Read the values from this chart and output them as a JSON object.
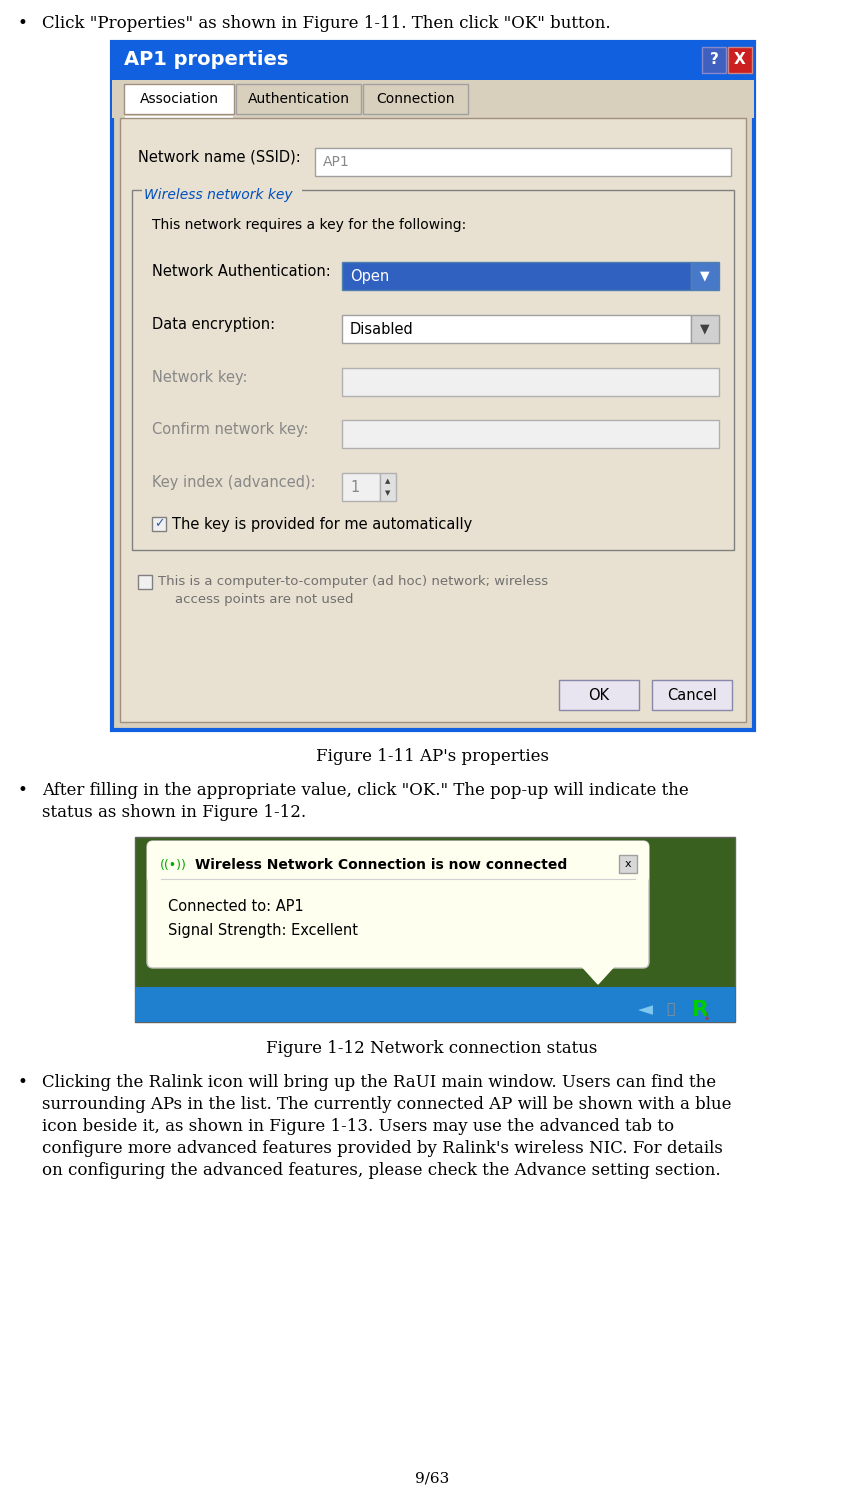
{
  "bg_color": "#ffffff",
  "text_color": "#000000",
  "page_number": "9/63",
  "bullet1": "Click \"Properties\" as shown in Figure 1-11. Then click \"OK\" button.",
  "fig1_caption": "Figure 1-11 AP's properties",
  "bullet2_line1": "After filling in the appropriate value, click \"OK.\" The pop-up will indicate the",
  "bullet2_line2": "status as shown in Figure 1-12.",
  "fig2_caption": "Figure 1-12 Network connection status",
  "bullet3_lines": [
    "Clicking the Ralink icon will bring up the RaUI main window. Users can find the",
    "surrounding APs in the list. The currently connected AP will be shown with a blue",
    "icon beside it, as shown in Figure 1-13. Users may use the advanced tab to",
    "configure more advanced features provided by Ralink's wireless NIC. For details",
    "on configuring the advanced features, please check the Advance setting section."
  ],
  "fig1_title": "AP1 properties",
  "fig1_title_color": "#ffffff",
  "fig1_title_bg": "#1060e0",
  "fig1_outer_border": "#1060e0",
  "fig1_body_bg": "#d8d0bc",
  "fig1_content_bg": "#e8e0d0",
  "tab1_active": "Association",
  "tab2": "Authentication",
  "tab3": "Connection",
  "tab_active_bg": "#ffffff",
  "tab_inactive_bg": "#d8d0bc",
  "ssid_label": "Network name (SSID):",
  "ssid_value": "AP1",
  "wireless_key_label": "Wireless network key",
  "requires_key_text": "This network requires a key for the following:",
  "net_auth_label": "Network Authentication:",
  "net_auth_value": "Open",
  "net_auth_dropdown_bg": "#3060c0",
  "net_auth_dropdown_arrow_bg": "#4070d0",
  "data_enc_label": "Data encryption:",
  "data_enc_value": "Disabled",
  "data_enc_dropdown_bg": "#ffffff",
  "net_key_label": "Network key:",
  "confirm_key_label": "Confirm network key:",
  "key_index_label": "Key index (advanced):",
  "key_index_value": "1",
  "auto_key_text": "The key is provided for me automatically",
  "adhoc_line1": "This is a computer-to-computer (ad hoc) network; wireless",
  "adhoc_line2": "access points are not used",
  "ok_btn": "OK",
  "cancel_btn": "Cancel",
  "fig2_notify_title": "Wireless Network Connection is now connected",
  "fig2_connected": "Connected to: AP1",
  "fig2_signal": "Signal Strength: Excellent",
  "fig2_notify_bg": "#fffff0",
  "fig2_scene_bg": "#3a6020",
  "fig2_taskbar_bg": "#2080d0",
  "fig2_border": "#606060"
}
